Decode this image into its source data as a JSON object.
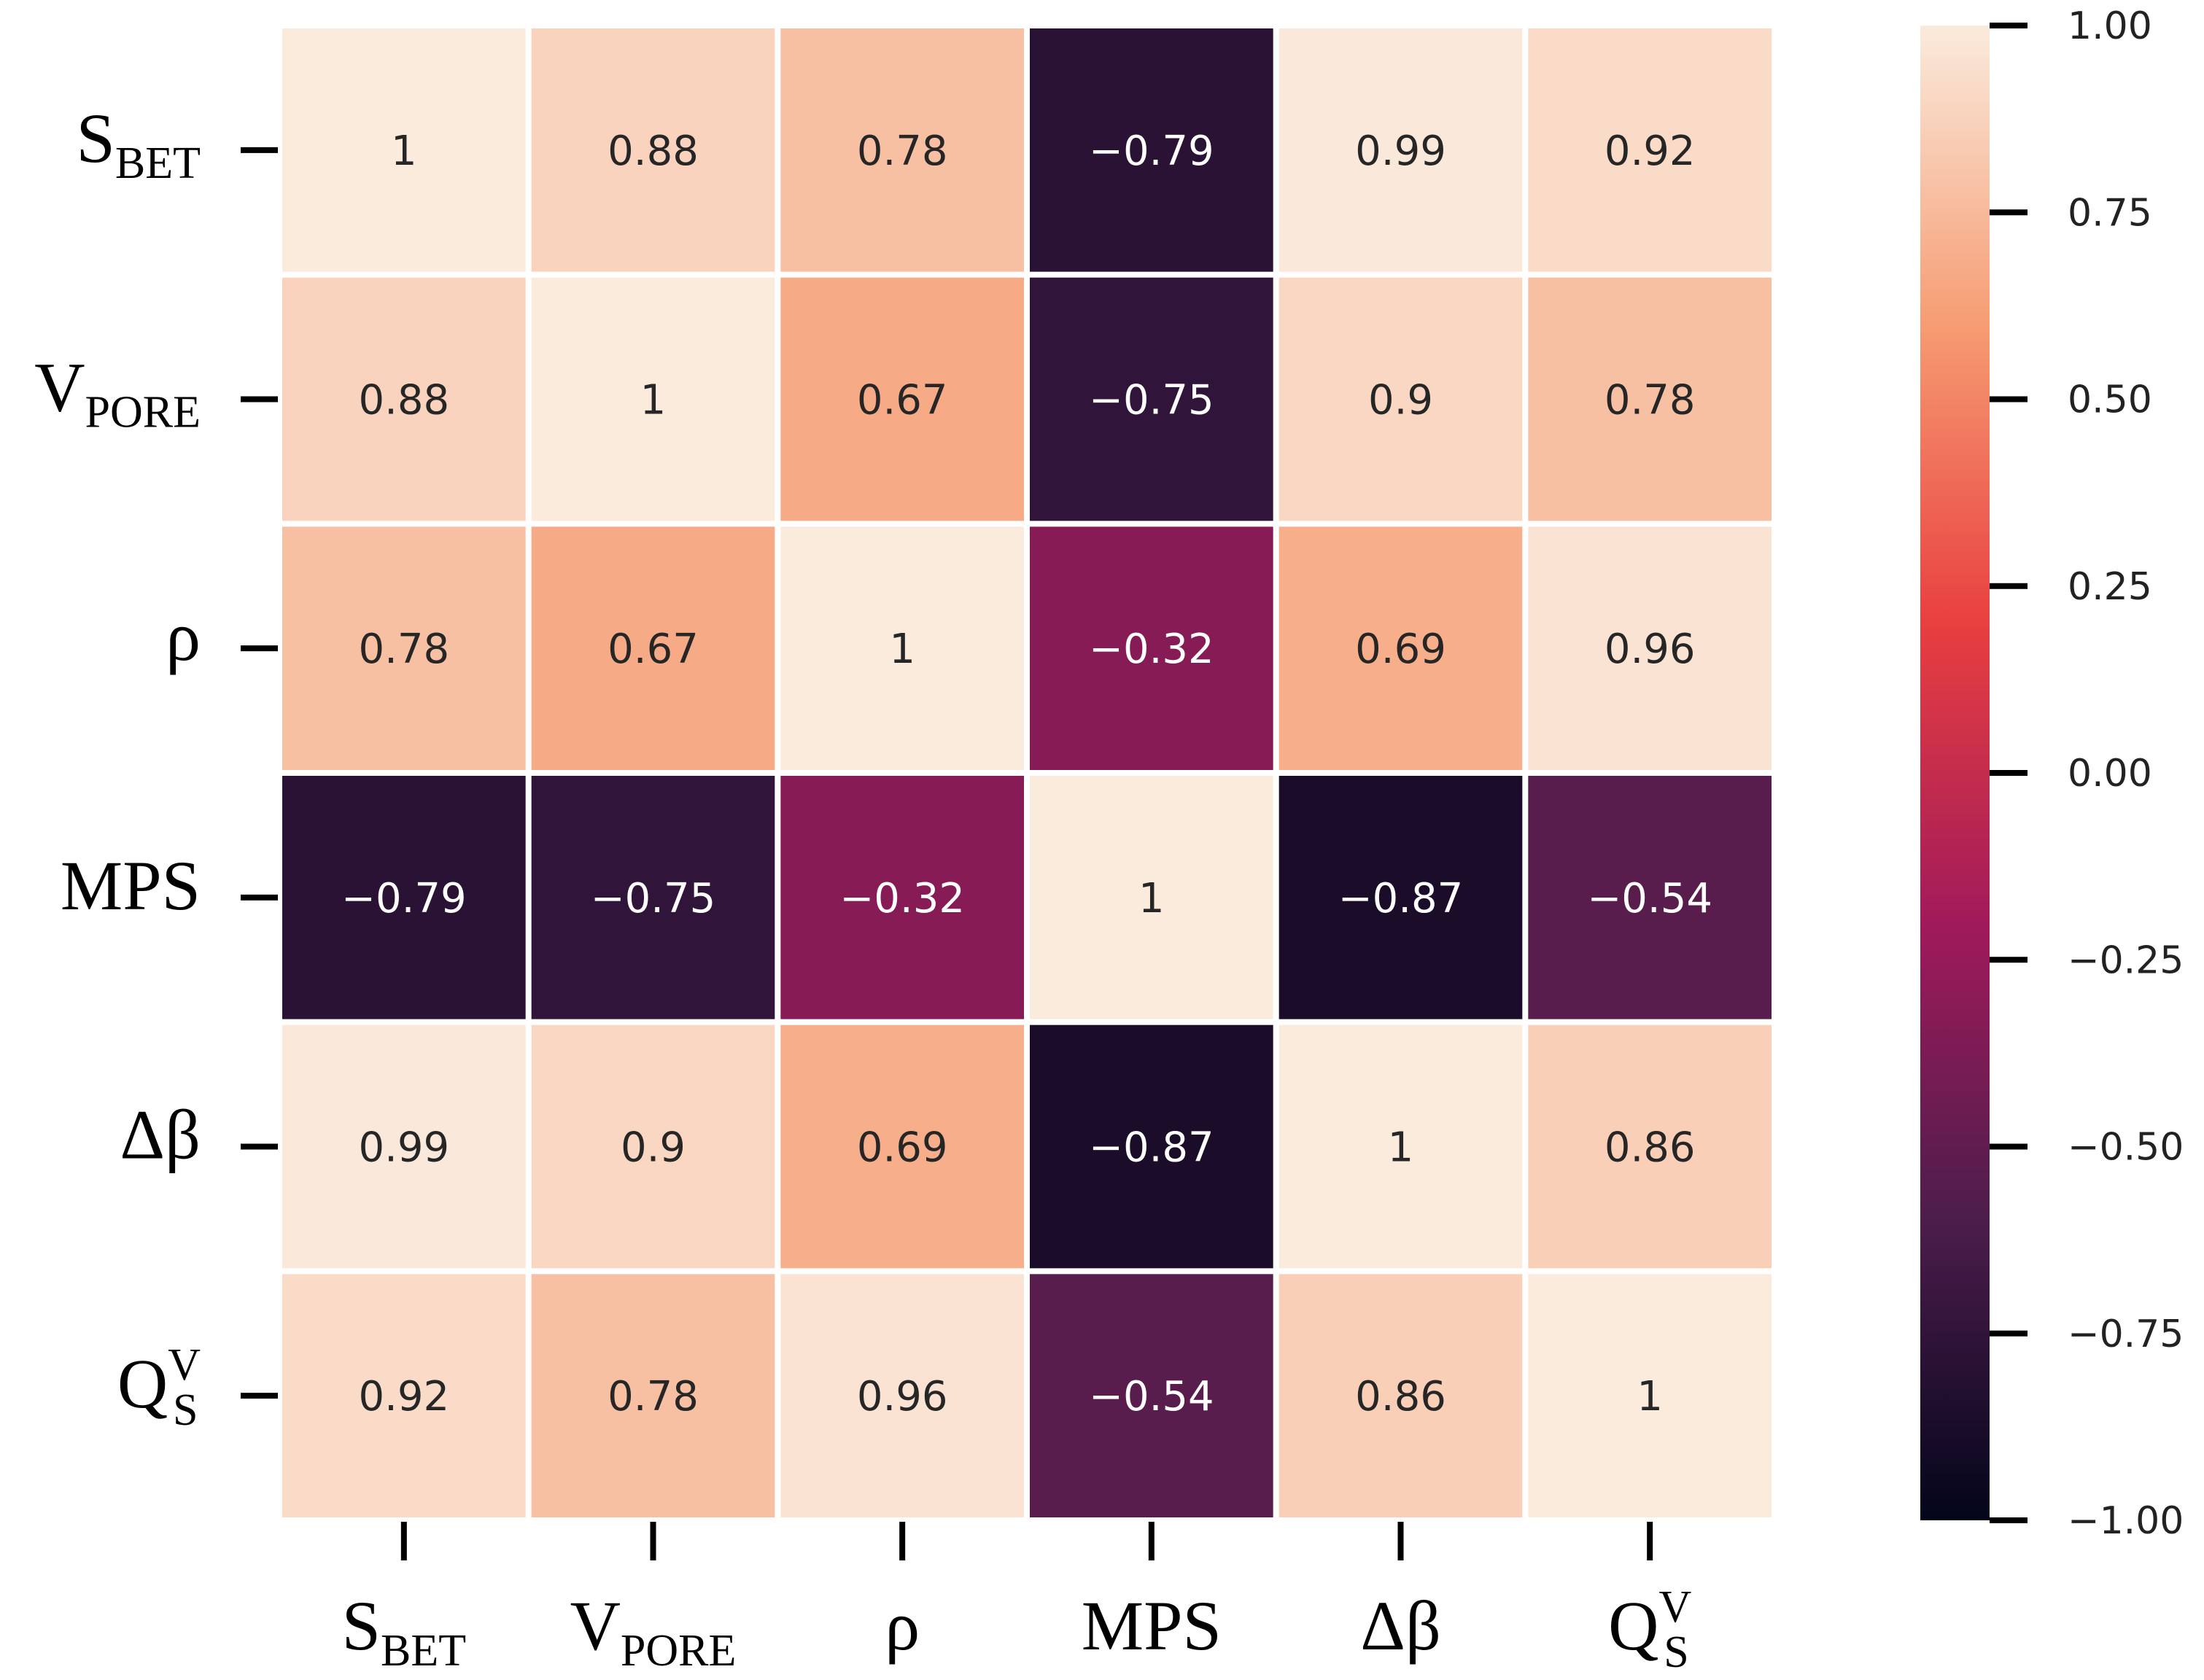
{
  "chart_data": {
    "type": "heatmap",
    "title": "",
    "labels": [
      {
        "main": "S",
        "sub": "BET",
        "sup": ""
      },
      {
        "main": "V",
        "sub": "PORE",
        "sup": ""
      },
      {
        "main": "ρ",
        "sub": "",
        "sup": ""
      },
      {
        "main": "MPS",
        "sub": "",
        "sup": ""
      },
      {
        "main": "Δβ",
        "sub": "",
        "sup": ""
      },
      {
        "main": "Q",
        "sub": "S",
        "sup": "V"
      }
    ],
    "values": [
      [
        1,
        0.88,
        0.78,
        -0.79,
        0.99,
        0.92
      ],
      [
        0.88,
        1,
        0.67,
        -0.75,
        0.9,
        0.78
      ],
      [
        0.78,
        0.67,
        1,
        -0.32,
        0.69,
        0.96
      ],
      [
        -0.79,
        -0.75,
        -0.32,
        1,
        -0.87,
        -0.54
      ],
      [
        0.99,
        0.9,
        0.69,
        -0.87,
        1,
        0.86
      ],
      [
        0.92,
        0.78,
        0.96,
        -0.54,
        0.86,
        1
      ]
    ],
    "value_labels": [
      [
        "1",
        "0.88",
        "0.78",
        "−0.79",
        "0.99",
        "0.92"
      ],
      [
        "0.88",
        "1",
        "0.67",
        "−0.75",
        "0.9",
        "0.78"
      ],
      [
        "0.78",
        "0.67",
        "1",
        "−0.32",
        "0.69",
        "0.96"
      ],
      [
        "−0.79",
        "−0.75",
        "−0.32",
        "1",
        "−0.87",
        "−0.54"
      ],
      [
        "0.99",
        "0.9",
        "0.69",
        "−0.87",
        "1",
        "0.86"
      ],
      [
        "0.92",
        "0.78",
        "0.96",
        "−0.54",
        "0.86",
        "1"
      ]
    ],
    "colorbar": {
      "range": [
        -1,
        1
      ],
      "ticks": [
        1,
        0.75,
        0.5,
        0.25,
        0,
        -0.25,
        -0.5,
        -0.75,
        -1
      ],
      "tick_labels": [
        "1.00",
        "0.75",
        "0.50",
        "0.25",
        "0.00",
        "−0.25",
        "−0.50",
        "−0.75",
        "−1.00"
      ],
      "colormap": [
        "#03051a",
        "#4c1d4b",
        "#a11a5b",
        "#e83f3f",
        "#f69c73",
        "#faebdd"
      ]
    },
    "grid": false,
    "legend": "colorbar-right"
  }
}
